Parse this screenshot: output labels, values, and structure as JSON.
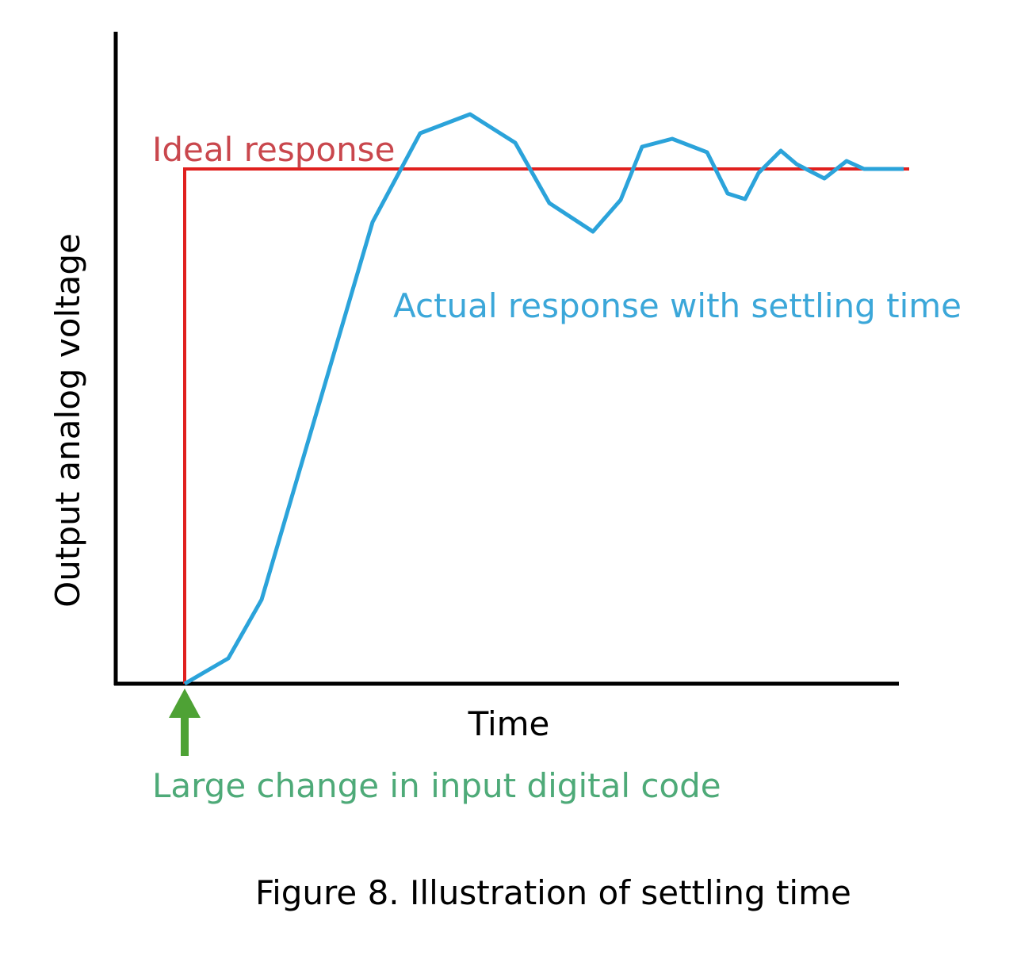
{
  "title": "Figure 8. Illustration of settling time",
  "y_axis_label": "Output analog voltage",
  "x_axis_label": "Time",
  "ideal_label": "Ideal response",
  "actual_label": "Actual response with settling time",
  "arrow_label": "Large change in input digital code"
}
